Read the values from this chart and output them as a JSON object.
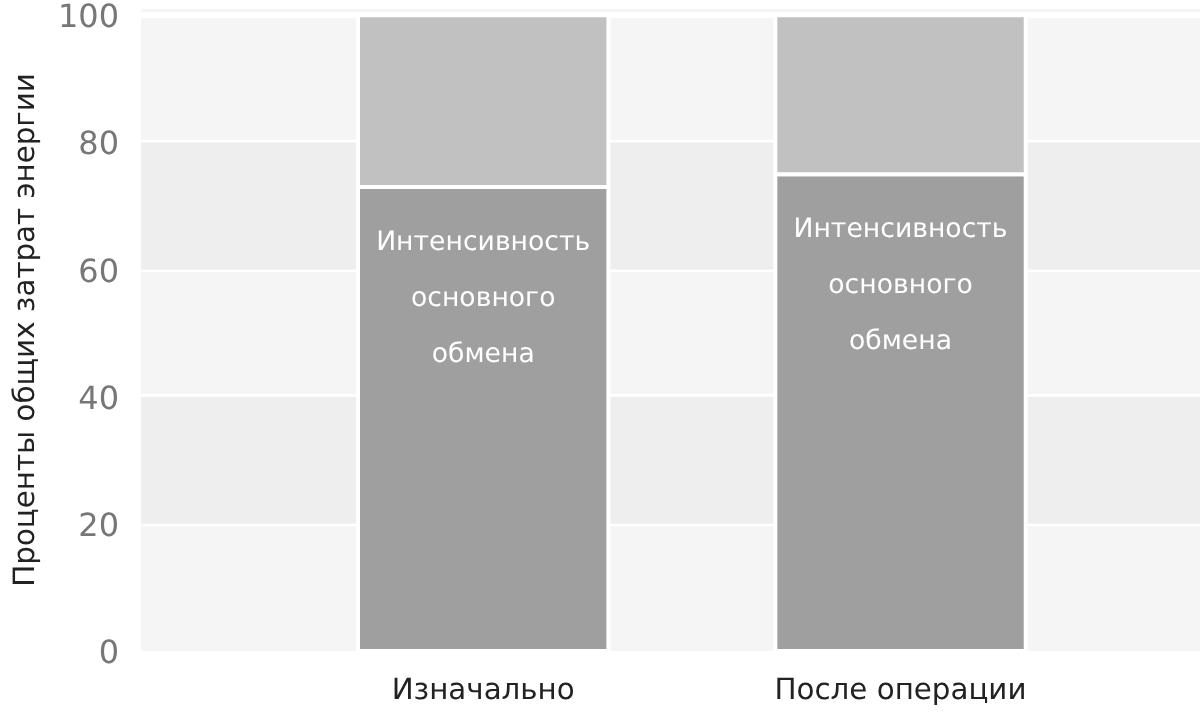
{
  "chart_data": {
    "type": "bar",
    "stacked": true,
    "ylabel": "Проценты общих затрат энергии",
    "categories": [
      "Изначально",
      "После операции"
    ],
    "series": [
      {
        "name": "Интенсивность основного обмена",
        "color": "#a09fa0",
        "values": [
          73,
          75
        ]
      },
      {
        "color": "#c2c1c2",
        "values": [
          27,
          25
        ]
      }
    ],
    "ylim": [
      0,
      101
    ],
    "yticks": [
      0,
      20,
      40,
      60,
      80,
      100
    ],
    "grid": "y",
    "bands": [
      {
        "axis": "y",
        "from": 20,
        "to": 40,
        "color": "#eeeeee"
      },
      {
        "axis": "y",
        "from": 60,
        "to": 80,
        "color": "#eeeeee"
      }
    ]
  }
}
